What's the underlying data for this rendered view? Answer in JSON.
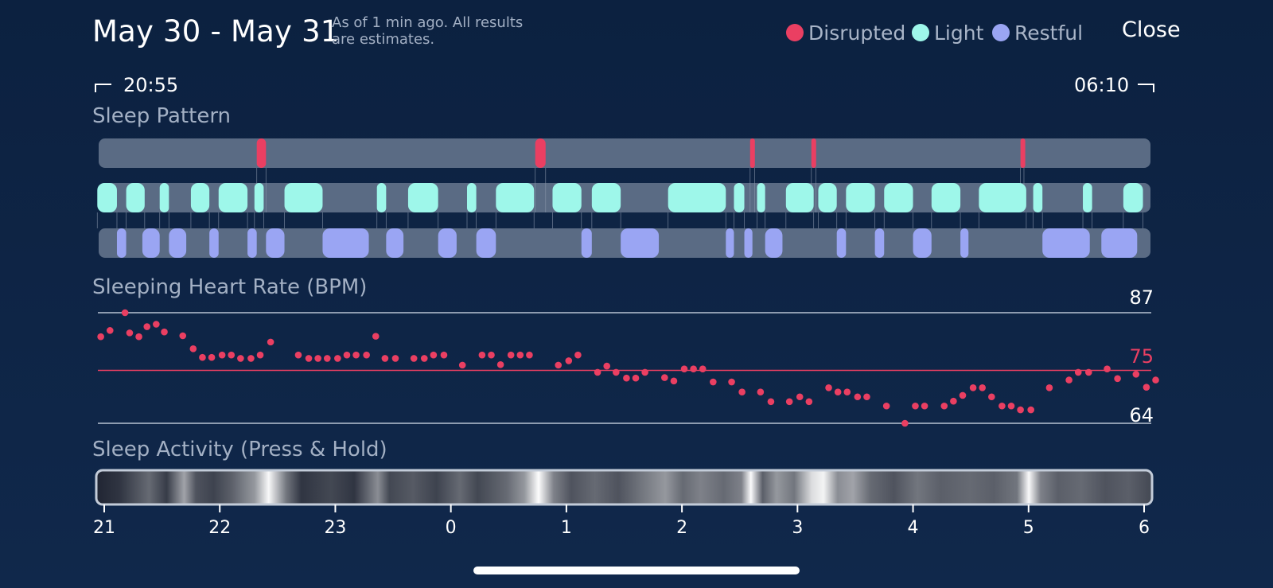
{
  "header": {
    "title": "May 30 - May 31",
    "subtitle": "As of 1 min ago. All results are estimates.",
    "close_label": "Close"
  },
  "legend": [
    {
      "label": "Disrupted",
      "color": "#ea3f62"
    },
    {
      "label": "Light",
      "color": "#9ef7ea"
    },
    {
      "label": "Restful",
      "color": "#9aa5f3"
    }
  ],
  "time_range": {
    "start": "20:55",
    "end": "06:10"
  },
  "sleep_pattern": {
    "title": "Sleep Pattern",
    "track_color": "#5a6b84",
    "disrupted": [
      [
        22.32,
        22.4
      ],
      [
        24.73,
        24.82
      ],
      [
        26.59,
        26.63
      ],
      [
        27.12,
        27.16
      ],
      [
        28.93,
        28.96
      ]
    ],
    "light": [
      [
        20.94,
        21.11
      ],
      [
        21.19,
        21.35
      ],
      [
        21.48,
        21.56
      ],
      [
        21.75,
        21.91
      ],
      [
        21.99,
        22.24
      ],
      [
        22.3,
        22.38
      ],
      [
        22.56,
        22.89
      ],
      [
        23.36,
        23.44
      ],
      [
        23.63,
        23.89
      ],
      [
        24.14,
        24.22
      ],
      [
        24.39,
        24.72
      ],
      [
        24.88,
        25.13
      ],
      [
        25.22,
        25.47
      ],
      [
        25.88,
        26.38
      ],
      [
        26.45,
        26.54
      ],
      [
        26.65,
        26.72
      ],
      [
        26.9,
        27.14
      ],
      [
        27.18,
        27.34
      ],
      [
        27.42,
        27.67
      ],
      [
        27.75,
        28.0
      ],
      [
        28.16,
        28.41
      ],
      [
        28.57,
        28.98
      ],
      [
        29.04,
        29.12
      ],
      [
        29.47,
        29.55
      ],
      [
        29.82,
        29.99
      ]
    ],
    "restful": [
      [
        21.11,
        21.19
      ],
      [
        21.33,
        21.48
      ],
      [
        21.56,
        21.71
      ],
      [
        21.91,
        21.99
      ],
      [
        22.24,
        22.32
      ],
      [
        22.4,
        22.56
      ],
      [
        22.89,
        23.29
      ],
      [
        23.44,
        23.59
      ],
      [
        23.89,
        24.05
      ],
      [
        24.22,
        24.39
      ],
      [
        25.13,
        25.22
      ],
      [
        25.47,
        25.8
      ],
      [
        26.38,
        26.45
      ],
      [
        26.54,
        26.61
      ],
      [
        26.72,
        26.87
      ],
      [
        27.34,
        27.42
      ],
      [
        27.67,
        27.75
      ],
      [
        28.0,
        28.16
      ],
      [
        28.41,
        28.48
      ],
      [
        29.12,
        29.53
      ],
      [
        29.63,
        29.94
      ]
    ]
  },
  "heart_rate": {
    "title": "Sleeping Heart Rate (BPM)",
    "max_label": "87",
    "avg_label": "75",
    "min_label": "64",
    "max": 87,
    "avg": 75,
    "min": 64,
    "dot_color": "#ea3f62",
    "points": [
      [
        20.97,
        82.0
      ],
      [
        21.05,
        83.3
      ],
      [
        21.18,
        87.0
      ],
      [
        21.22,
        82.8
      ],
      [
        21.3,
        82.0
      ],
      [
        21.37,
        84.1
      ],
      [
        21.45,
        84.6
      ],
      [
        21.52,
        83.0
      ],
      [
        21.68,
        82.2
      ],
      [
        21.77,
        79.5
      ],
      [
        21.85,
        77.7
      ],
      [
        21.93,
        77.7
      ],
      [
        22.02,
        78.2
      ],
      [
        22.1,
        78.2
      ],
      [
        22.18,
        77.5
      ],
      [
        22.27,
        77.5
      ],
      [
        22.35,
        78.2
      ],
      [
        22.44,
        80.9
      ],
      [
        22.68,
        78.2
      ],
      [
        22.77,
        77.5
      ],
      [
        22.85,
        77.5
      ],
      [
        22.93,
        77.5
      ],
      [
        23.02,
        77.5
      ],
      [
        23.1,
        78.2
      ],
      [
        23.18,
        78.2
      ],
      [
        23.27,
        78.2
      ],
      [
        23.35,
        82.1
      ],
      [
        23.43,
        77.5
      ],
      [
        23.52,
        77.5
      ],
      [
        23.68,
        77.5
      ],
      [
        23.77,
        77.5
      ],
      [
        23.85,
        78.2
      ],
      [
        23.94,
        78.2
      ],
      [
        24.1,
        76.1
      ],
      [
        24.27,
        78.2
      ],
      [
        24.35,
        78.2
      ],
      [
        24.43,
        76.2
      ],
      [
        24.52,
        78.2
      ],
      [
        24.6,
        78.2
      ],
      [
        24.68,
        78.2
      ],
      [
        24.93,
        76.1
      ],
      [
        25.02,
        77.0
      ],
      [
        25.1,
        78.2
      ],
      [
        25.27,
        74.6
      ],
      [
        25.35,
        75.9
      ],
      [
        25.43,
        74.6
      ],
      [
        25.52,
        73.4
      ],
      [
        25.6,
        73.4
      ],
      [
        25.68,
        74.6
      ],
      [
        25.85,
        73.5
      ],
      [
        25.93,
        72.8
      ],
      [
        26.02,
        75.3
      ],
      [
        26.1,
        75.3
      ],
      [
        26.18,
        75.3
      ],
      [
        26.27,
        72.6
      ],
      [
        26.43,
        72.6
      ],
      [
        26.52,
        70.5
      ],
      [
        26.68,
        70.5
      ],
      [
        26.77,
        68.5
      ],
      [
        26.93,
        68.5
      ],
      [
        27.02,
        69.5
      ],
      [
        27.1,
        68.5
      ],
      [
        27.27,
        71.4
      ],
      [
        27.35,
        70.5
      ],
      [
        27.43,
        70.5
      ],
      [
        27.52,
        69.5
      ],
      [
        27.6,
        69.5
      ],
      [
        27.77,
        67.6
      ],
      [
        27.93,
        64.0
      ],
      [
        28.02,
        67.6
      ],
      [
        28.1,
        67.6
      ],
      [
        28.27,
        67.6
      ],
      [
        28.35,
        68.6
      ],
      [
        28.43,
        69.8
      ],
      [
        28.52,
        71.4
      ],
      [
        28.6,
        71.4
      ],
      [
        28.68,
        69.5
      ],
      [
        28.77,
        67.6
      ],
      [
        28.85,
        67.6
      ],
      [
        28.93,
        66.8
      ],
      [
        29.02,
        66.8
      ],
      [
        29.18,
        71.4
      ],
      [
        29.35,
        73.0
      ],
      [
        29.43,
        74.6
      ],
      [
        29.52,
        74.6
      ],
      [
        29.68,
        75.3
      ],
      [
        29.77,
        73.3
      ],
      [
        29.93,
        74.2
      ],
      [
        30.02,
        71.5
      ],
      [
        30.1,
        73.0
      ]
    ]
  },
  "sleep_activity": {
    "title": "Sleep Activity (Press & Hold)",
    "bands": [
      [
        21.0,
        0.05
      ],
      [
        21.2,
        0.12
      ],
      [
        21.45,
        0.35
      ],
      [
        21.6,
        0.15
      ],
      [
        21.75,
        0.6
      ],
      [
        21.85,
        0.25
      ],
      [
        22.0,
        0.18
      ],
      [
        22.15,
        0.3
      ],
      [
        22.35,
        0.55
      ],
      [
        22.47,
        0.97
      ],
      [
        22.62,
        0.4
      ],
      [
        22.75,
        0.12
      ],
      [
        23.0,
        0.2
      ],
      [
        23.2,
        0.12
      ],
      [
        23.4,
        0.5
      ],
      [
        23.5,
        0.2
      ],
      [
        23.7,
        0.28
      ],
      [
        23.9,
        0.18
      ],
      [
        24.1,
        0.35
      ],
      [
        24.25,
        0.2
      ],
      [
        24.5,
        0.35
      ],
      [
        24.65,
        0.55
      ],
      [
        24.77,
        0.99
      ],
      [
        24.9,
        0.45
      ],
      [
        25.05,
        0.25
      ],
      [
        25.25,
        0.35
      ],
      [
        25.45,
        0.25
      ],
      [
        25.65,
        0.4
      ],
      [
        25.85,
        0.55
      ],
      [
        26.0,
        0.35
      ],
      [
        26.15,
        0.45
      ],
      [
        26.35,
        0.35
      ],
      [
        26.5,
        0.45
      ],
      [
        26.58,
        0.98
      ],
      [
        26.68,
        0.3
      ],
      [
        26.8,
        0.55
      ],
      [
        26.95,
        0.4
      ],
      [
        27.1,
        0.85
      ],
      [
        27.2,
        0.95
      ],
      [
        27.32,
        0.5
      ],
      [
        27.45,
        0.6
      ],
      [
        27.6,
        0.35
      ],
      [
        27.8,
        0.25
      ],
      [
        28.0,
        0.4
      ],
      [
        28.2,
        0.3
      ],
      [
        28.45,
        0.35
      ],
      [
        28.65,
        0.3
      ],
      [
        28.85,
        0.4
      ],
      [
        28.95,
        0.98
      ],
      [
        29.05,
        0.45
      ],
      [
        29.2,
        0.3
      ],
      [
        29.4,
        0.35
      ],
      [
        29.6,
        0.25
      ],
      [
        29.8,
        0.3
      ],
      [
        30.0,
        0.2
      ]
    ],
    "ticks": [
      "21",
      "22",
      "23",
      "0",
      "1",
      "2",
      "3",
      "4",
      "5",
      "6"
    ]
  }
}
